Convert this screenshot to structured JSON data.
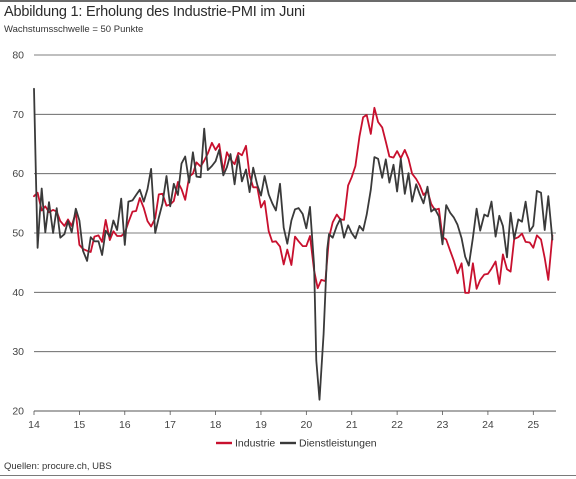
{
  "title": "Abbildung 1: Erholung des Industrie-PMI im Juni",
  "subtitle": "Wachstumsschwelle = 50 Punkte",
  "source": "Quellen: procure.ch, UBS",
  "colors": {
    "industrie": "#c8102e",
    "dienstleistungen": "#3a3a3a",
    "grid": "#555555"
  },
  "chart_data": {
    "type": "line",
    "ylim": [
      20,
      80
    ],
    "yticks": [
      20,
      30,
      40,
      50,
      60,
      70,
      80
    ],
    "xlim": [
      2014,
      2025.5
    ],
    "xticks": [
      {
        "value": 2014,
        "label": "14"
      },
      {
        "value": 2015,
        "label": "15"
      },
      {
        "value": 2016,
        "label": "16"
      },
      {
        "value": 2017,
        "label": "17"
      },
      {
        "value": 2018,
        "label": "18"
      },
      {
        "value": 2019,
        "label": "19"
      },
      {
        "value": 2020,
        "label": "20"
      },
      {
        "value": 2021,
        "label": "21"
      },
      {
        "value": 2022,
        "label": "22"
      },
      {
        "value": 2023,
        "label": "23"
      },
      {
        "value": 2024,
        "label": "24"
      },
      {
        "value": 2025,
        "label": "25"
      }
    ],
    "grid": true,
    "legend_position": "bottom-center",
    "series": [
      {
        "name": "Industrie",
        "color": "#c8102e",
        "points": [
          [
            2014.0,
            56.2
          ],
          [
            2014.08,
            56.8
          ],
          [
            2014.17,
            53.8
          ],
          [
            2014.25,
            54.5
          ],
          [
            2014.33,
            53.5
          ],
          [
            2014.42,
            53.9
          ],
          [
            2014.5,
            53.6
          ],
          [
            2014.58,
            52.0
          ],
          [
            2014.67,
            51.2
          ],
          [
            2014.75,
            52.3
          ],
          [
            2014.83,
            51.2
          ],
          [
            2014.92,
            53.5
          ],
          [
            2015.0,
            48.0
          ],
          [
            2015.08,
            47.3
          ],
          [
            2015.17,
            47.0
          ],
          [
            2015.25,
            46.8
          ],
          [
            2015.33,
            49.4
          ],
          [
            2015.42,
            49.6
          ],
          [
            2015.5,
            48.5
          ],
          [
            2015.58,
            52.2
          ],
          [
            2015.67,
            48.8
          ],
          [
            2015.75,
            50.3
          ],
          [
            2015.83,
            49.5
          ],
          [
            2015.92,
            49.5
          ],
          [
            2016.0,
            50.0
          ],
          [
            2016.08,
            51.8
          ],
          [
            2016.17,
            53.6
          ],
          [
            2016.25,
            53.7
          ],
          [
            2016.33,
            55.9
          ],
          [
            2016.42,
            54.2
          ],
          [
            2016.5,
            52.0
          ],
          [
            2016.58,
            51.1
          ],
          [
            2016.67,
            52.5
          ],
          [
            2016.75,
            56.5
          ],
          [
            2016.83,
            56.6
          ],
          [
            2016.92,
            54.6
          ],
          [
            2017.0,
            54.8
          ],
          [
            2017.08,
            55.4
          ],
          [
            2017.17,
            58.6
          ],
          [
            2017.25,
            57.4
          ],
          [
            2017.33,
            55.6
          ],
          [
            2017.42,
            59.5
          ],
          [
            2017.5,
            60.0
          ],
          [
            2017.58,
            61.9
          ],
          [
            2017.67,
            61.2
          ],
          [
            2017.75,
            62.2
          ],
          [
            2017.83,
            63.4
          ],
          [
            2017.92,
            65.2
          ],
          [
            2018.0,
            64.0
          ],
          [
            2018.08,
            65.0
          ],
          [
            2018.17,
            60.4
          ],
          [
            2018.25,
            63.6
          ],
          [
            2018.33,
            62.4
          ],
          [
            2018.42,
            61.6
          ],
          [
            2018.5,
            63.5
          ],
          [
            2018.58,
            63.1
          ],
          [
            2018.67,
            64.7
          ],
          [
            2018.75,
            59.7
          ],
          [
            2018.83,
            57.7
          ],
          [
            2018.92,
            57.7
          ],
          [
            2019.0,
            54.3
          ],
          [
            2019.08,
            55.4
          ],
          [
            2019.17,
            50.3
          ],
          [
            2019.25,
            48.5
          ],
          [
            2019.33,
            48.6
          ],
          [
            2019.42,
            47.7
          ],
          [
            2019.5,
            44.7
          ],
          [
            2019.58,
            47.2
          ],
          [
            2019.67,
            44.6
          ],
          [
            2019.75,
            49.4
          ],
          [
            2019.83,
            48.6
          ],
          [
            2019.92,
            47.8
          ],
          [
            2020.0,
            47.8
          ],
          [
            2020.08,
            49.5
          ],
          [
            2020.17,
            43.7
          ],
          [
            2020.25,
            40.7
          ],
          [
            2020.33,
            42.1
          ],
          [
            2020.42,
            41.9
          ],
          [
            2020.5,
            49.2
          ],
          [
            2020.58,
            51.8
          ],
          [
            2020.67,
            53.1
          ],
          [
            2020.75,
            52.3
          ],
          [
            2020.83,
            52.2
          ],
          [
            2020.92,
            58.0
          ],
          [
            2021.0,
            59.4
          ],
          [
            2021.08,
            61.3
          ],
          [
            2021.17,
            66.3
          ],
          [
            2021.25,
            69.5
          ],
          [
            2021.33,
            69.9
          ],
          [
            2021.42,
            66.7
          ],
          [
            2021.5,
            71.1
          ],
          [
            2021.58,
            68.7
          ],
          [
            2021.67,
            67.8
          ],
          [
            2021.75,
            65.4
          ],
          [
            2021.83,
            62.9
          ],
          [
            2021.92,
            62.7
          ],
          [
            2022.0,
            63.8
          ],
          [
            2022.08,
            62.6
          ],
          [
            2022.17,
            64.0
          ],
          [
            2022.25,
            62.5
          ],
          [
            2022.33,
            60.0
          ],
          [
            2022.42,
            59.1
          ],
          [
            2022.5,
            58.0
          ],
          [
            2022.58,
            56.4
          ],
          [
            2022.67,
            57.1
          ],
          [
            2022.75,
            54.9
          ],
          [
            2022.83,
            53.9
          ],
          [
            2022.92,
            54.1
          ],
          [
            2023.0,
            49.3
          ],
          [
            2023.08,
            48.9
          ],
          [
            2023.17,
            47.0
          ],
          [
            2023.25,
            45.3
          ],
          [
            2023.33,
            43.2
          ],
          [
            2023.42,
            44.9
          ],
          [
            2023.5,
            39.9
          ],
          [
            2023.58,
            39.9
          ],
          [
            2023.67,
            44.9
          ],
          [
            2023.75,
            40.6
          ],
          [
            2023.83,
            42.1
          ],
          [
            2023.92,
            43.0
          ],
          [
            2024.0,
            43.1
          ],
          [
            2024.08,
            44.0
          ],
          [
            2024.17,
            45.2
          ],
          [
            2024.25,
            41.4
          ],
          [
            2024.33,
            46.4
          ],
          [
            2024.42,
            43.9
          ],
          [
            2024.5,
            43.5
          ],
          [
            2024.58,
            49.0
          ],
          [
            2024.67,
            49.3
          ],
          [
            2024.75,
            49.9
          ],
          [
            2024.83,
            48.5
          ],
          [
            2024.92,
            48.4
          ],
          [
            2025.0,
            47.5
          ],
          [
            2025.08,
            49.6
          ],
          [
            2025.17,
            48.9
          ],
          [
            2025.25,
            45.8
          ],
          [
            2025.33,
            42.1
          ],
          [
            2025.42,
            49.6
          ]
        ]
      },
      {
        "name": "Dienstleistungen",
        "color": "#3a3a3a",
        "points": [
          [
            2014.0,
            74.3
          ],
          [
            2014.04,
            60.5
          ],
          [
            2014.08,
            47.5
          ],
          [
            2014.13,
            53.5
          ],
          [
            2014.17,
            57.5
          ],
          [
            2014.25,
            50.1
          ],
          [
            2014.33,
            55.2
          ],
          [
            2014.42,
            50.0
          ],
          [
            2014.5,
            54.2
          ],
          [
            2014.58,
            49.2
          ],
          [
            2014.67,
            49.8
          ],
          [
            2014.75,
            52.0
          ],
          [
            2014.83,
            50.1
          ],
          [
            2014.92,
            54.1
          ],
          [
            2015.0,
            52.1
          ],
          [
            2015.08,
            47.0
          ],
          [
            2015.17,
            45.3
          ],
          [
            2015.25,
            49.3
          ],
          [
            2015.33,
            48.6
          ],
          [
            2015.42,
            48.6
          ],
          [
            2015.5,
            46.3
          ],
          [
            2015.58,
            50.4
          ],
          [
            2015.67,
            49.4
          ],
          [
            2015.75,
            52.1
          ],
          [
            2015.83,
            50.5
          ],
          [
            2015.92,
            55.8
          ],
          [
            2016.0,
            48.0
          ],
          [
            2016.08,
            55.3
          ],
          [
            2016.17,
            55.5
          ],
          [
            2016.25,
            56.4
          ],
          [
            2016.33,
            57.3
          ],
          [
            2016.42,
            55.3
          ],
          [
            2016.5,
            57.4
          ],
          [
            2016.58,
            60.8
          ],
          [
            2016.67,
            50.0
          ],
          [
            2016.75,
            52.6
          ],
          [
            2016.83,
            55.0
          ],
          [
            2016.92,
            59.6
          ],
          [
            2017.0,
            54.5
          ],
          [
            2017.08,
            58.3
          ],
          [
            2017.17,
            56.4
          ],
          [
            2017.25,
            61.7
          ],
          [
            2017.33,
            62.9
          ],
          [
            2017.42,
            58.5
          ],
          [
            2017.5,
            63.6
          ],
          [
            2017.58,
            59.5
          ],
          [
            2017.67,
            59.4
          ],
          [
            2017.75,
            67.6
          ],
          [
            2017.83,
            60.6
          ],
          [
            2017.92,
            61.3
          ],
          [
            2018.0,
            62.1
          ],
          [
            2018.08,
            64.0
          ],
          [
            2018.17,
            59.7
          ],
          [
            2018.25,
            61.1
          ],
          [
            2018.33,
            63.3
          ],
          [
            2018.42,
            58.2
          ],
          [
            2018.5,
            63.0
          ],
          [
            2018.58,
            58.7
          ],
          [
            2018.67,
            60.7
          ],
          [
            2018.75,
            56.9
          ],
          [
            2018.83,
            61.0
          ],
          [
            2018.92,
            58.1
          ],
          [
            2019.0,
            56.3
          ],
          [
            2019.08,
            59.6
          ],
          [
            2019.17,
            56.5
          ],
          [
            2019.25,
            55.0
          ],
          [
            2019.33,
            53.8
          ],
          [
            2019.42,
            58.3
          ],
          [
            2019.5,
            50.9
          ],
          [
            2019.58,
            48.2
          ],
          [
            2019.67,
            52.1
          ],
          [
            2019.75,
            54.0
          ],
          [
            2019.83,
            54.2
          ],
          [
            2019.92,
            53.2
          ],
          [
            2020.0,
            50.8
          ],
          [
            2020.08,
            54.4
          ],
          [
            2020.17,
            44.5
          ],
          [
            2020.22,
            28.5
          ],
          [
            2020.29,
            21.9
          ],
          [
            2020.38,
            33.0
          ],
          [
            2020.46,
            47.2
          ],
          [
            2020.5,
            49.8
          ],
          [
            2020.58,
            49.2
          ],
          [
            2020.67,
            51.2
          ],
          [
            2020.75,
            52.4
          ],
          [
            2020.83,
            49.2
          ],
          [
            2020.92,
            51.3
          ],
          [
            2021.0,
            50.0
          ],
          [
            2021.08,
            49.1
          ],
          [
            2021.17,
            51.2
          ],
          [
            2021.25,
            50.4
          ],
          [
            2021.33,
            53.1
          ],
          [
            2021.42,
            57.3
          ],
          [
            2021.5,
            62.8
          ],
          [
            2021.58,
            62.5
          ],
          [
            2021.67,
            59.3
          ],
          [
            2021.75,
            62.4
          ],
          [
            2021.83,
            58.5
          ],
          [
            2021.92,
            61.5
          ],
          [
            2022.0,
            57.0
          ],
          [
            2022.08,
            62.5
          ],
          [
            2022.17,
            56.6
          ],
          [
            2022.25,
            60.1
          ],
          [
            2022.33,
            55.3
          ],
          [
            2022.42,
            58.2
          ],
          [
            2022.5,
            56.5
          ],
          [
            2022.58,
            55.0
          ],
          [
            2022.67,
            57.8
          ],
          [
            2022.75,
            53.6
          ],
          [
            2022.83,
            54.1
          ],
          [
            2022.92,
            52.8
          ],
          [
            2023.0,
            48.1
          ],
          [
            2023.08,
            54.7
          ],
          [
            2023.17,
            53.4
          ],
          [
            2023.25,
            52.6
          ],
          [
            2023.33,
            51.4
          ],
          [
            2023.42,
            49.1
          ],
          [
            2023.5,
            46.0
          ],
          [
            2023.58,
            44.5
          ],
          [
            2023.67,
            49.2
          ],
          [
            2023.75,
            54.1
          ],
          [
            2023.83,
            50.4
          ],
          [
            2023.92,
            53.1
          ],
          [
            2024.0,
            52.8
          ],
          [
            2024.08,
            55.3
          ],
          [
            2024.17,
            49.4
          ],
          [
            2024.25,
            52.9
          ],
          [
            2024.33,
            51.2
          ],
          [
            2024.42,
            45.9
          ],
          [
            2024.5,
            53.4
          ],
          [
            2024.58,
            49.0
          ],
          [
            2024.67,
            52.3
          ],
          [
            2024.75,
            51.9
          ],
          [
            2024.83,
            55.3
          ],
          [
            2024.92,
            50.3
          ],
          [
            2025.0,
            51.2
          ],
          [
            2025.08,
            57.1
          ],
          [
            2025.17,
            56.8
          ],
          [
            2025.25,
            50.5
          ],
          [
            2025.33,
            56.2
          ],
          [
            2025.42,
            48.9
          ]
        ]
      }
    ]
  }
}
